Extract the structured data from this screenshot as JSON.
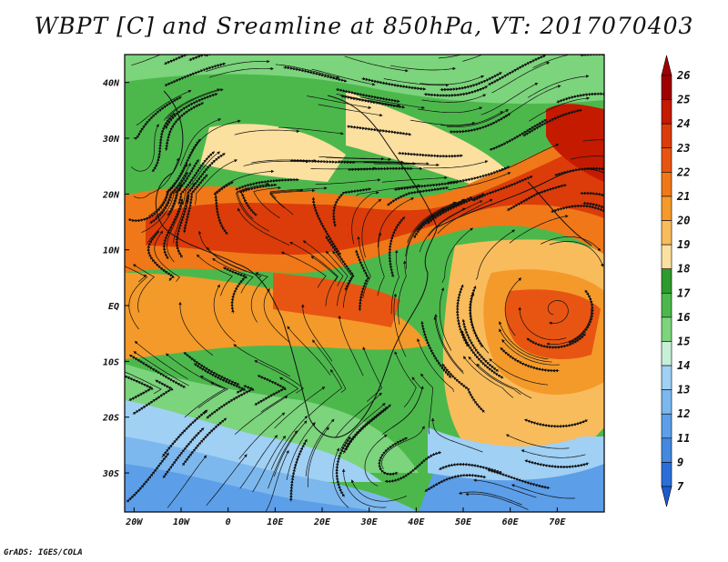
{
  "title": "WBPT [C] and Sreamline at 850hPa, VT: 2017070403",
  "credit": "GrADS: IGES/COLA",
  "map": {
    "variable": "Wet-bulb potential temperature",
    "level": "850hPa",
    "valid_time": "2017070403",
    "lon_range": [
      -22,
      80
    ],
    "lat_range": [
      -37,
      45
    ],
    "lat_ticks": [
      {
        "value": 40,
        "label": "40N"
      },
      {
        "value": 30,
        "label": "30N"
      },
      {
        "value": 20,
        "label": "20N"
      },
      {
        "value": 10,
        "label": "10N"
      },
      {
        "value": 0,
        "label": "EQ"
      },
      {
        "value": -10,
        "label": "10S"
      },
      {
        "value": -20,
        "label": "20S"
      },
      {
        "value": -30,
        "label": "30S"
      }
    ],
    "lon_ticks": [
      {
        "value": -20,
        "label": "20W"
      },
      {
        "value": -10,
        "label": "10W"
      },
      {
        "value": 0,
        "label": "0"
      },
      {
        "value": 10,
        "label": "10E"
      },
      {
        "value": 20,
        "label": "20E"
      },
      {
        "value": 30,
        "label": "30E"
      },
      {
        "value": 40,
        "label": "40E"
      },
      {
        "value": 50,
        "label": "50E"
      },
      {
        "value": 60,
        "label": "60E"
      },
      {
        "value": 70,
        "label": "70E"
      }
    ]
  },
  "colorbar": {
    "labels": [
      "26",
      "25",
      "24",
      "23",
      "22",
      "21",
      "20",
      "19",
      "18",
      "17",
      "16",
      "15",
      "14",
      "13",
      "12",
      "11",
      "9",
      "7"
    ],
    "colors": [
      "#a00000",
      "#c41a00",
      "#dc3c0a",
      "#e85512",
      "#f07818",
      "#f49a2a",
      "#f8bc5c",
      "#fbe0a0",
      "#2e9a2e",
      "#4cb84c",
      "#7cd47c",
      "#c8f0d8",
      "#a0d0f4",
      "#7cb8ee",
      "#5c9ee8",
      "#4488e0",
      "#2c6ed8"
    ]
  }
}
